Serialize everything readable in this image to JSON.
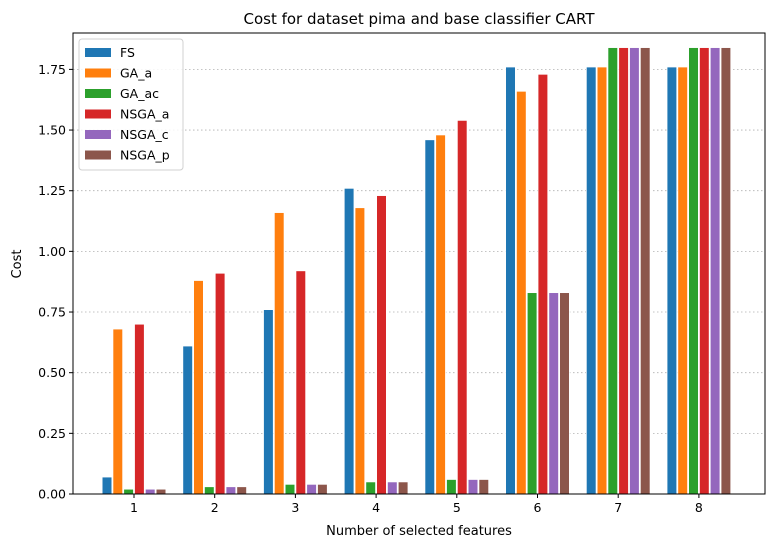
{
  "chart_data": {
    "type": "bar",
    "title": "Cost for dataset pima and base classifier CART",
    "xlabel": "Number of selected features",
    "ylabel": "Cost",
    "categories": [
      "1",
      "2",
      "3",
      "4",
      "5",
      "6",
      "7",
      "8"
    ],
    "ylim": [
      0,
      1.9
    ],
    "yticks": [
      "0.00",
      "0.25",
      "0.50",
      "0.75",
      "1.00",
      "1.25",
      "1.50",
      "1.75"
    ],
    "grid": "y-dotted",
    "legend_position": "top-left",
    "series": [
      {
        "name": "FS",
        "color": "#1f77b4",
        "values": [
          0.07,
          0.61,
          0.76,
          1.26,
          1.46,
          1.76,
          1.76,
          1.76
        ]
      },
      {
        "name": "GA_a",
        "color": "#ff7f0e",
        "values": [
          0.68,
          0.88,
          1.16,
          1.18,
          1.48,
          1.66,
          1.76,
          1.76
        ]
      },
      {
        "name": "GA_ac",
        "color": "#2ca02c",
        "values": [
          0.02,
          0.03,
          0.04,
          0.05,
          0.06,
          0.83,
          1.84,
          1.84
        ]
      },
      {
        "name": "NSGA_a",
        "color": "#d62728",
        "values": [
          0.7,
          0.91,
          0.92,
          1.23,
          1.54,
          1.73,
          1.84,
          1.84
        ]
      },
      {
        "name": "NSGA_c",
        "color": "#9467bd",
        "values": [
          0.02,
          0.03,
          0.04,
          0.05,
          0.06,
          0.83,
          1.84,
          1.84
        ]
      },
      {
        "name": "NSGA_p",
        "color": "#8c564b",
        "values": [
          0.02,
          0.03,
          0.04,
          0.05,
          0.06,
          0.83,
          1.84,
          1.84
        ]
      }
    ]
  }
}
